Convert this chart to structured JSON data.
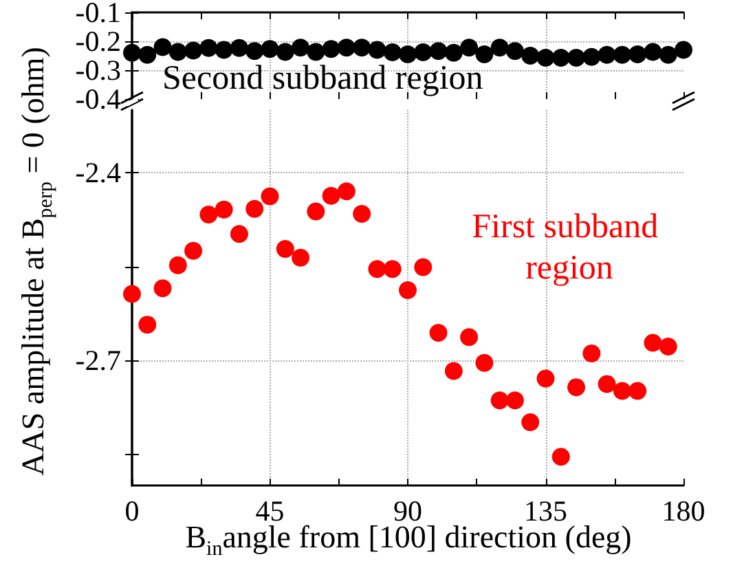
{
  "chart_data": [
    {
      "type": "scatter",
      "xlim": [
        0,
        180
      ],
      "xticks": [
        0,
        {
          "value": 22.5,
          "label": null
        },
        45,
        {
          "value": 67.5,
          "label": null
        },
        90,
        {
          "value": 112.5,
          "label": null
        },
        135,
        {
          "value": 157.5,
          "label": null
        },
        180
      ],
      "ylim": [
        -0.4,
        -0.1
      ],
      "yticks": [
        -0.4,
        -0.3,
        -0.2,
        -0.1
      ],
      "tick_labels": "y",
      "grid": true,
      "marker": "circle",
      "x": [
        0,
        5,
        10,
        15,
        20,
        25,
        30,
        35,
        40,
        45,
        50,
        55,
        60,
        65,
        70,
        75,
        80,
        85,
        90,
        95,
        100,
        105,
        110,
        115,
        120,
        125,
        130,
        135,
        140,
        145,
        150,
        155,
        160,
        165,
        170,
        175,
        180
      ],
      "series": [
        {
          "color": "#000000",
          "values": [
            -0.24,
            -0.247,
            -0.22,
            -0.237,
            -0.232,
            -0.223,
            -0.23,
            -0.223,
            -0.234,
            -0.227,
            -0.237,
            -0.222,
            -0.237,
            -0.227,
            -0.222,
            -0.222,
            -0.23,
            -0.238,
            -0.245,
            -0.238,
            -0.234,
            -0.24,
            -0.222,
            -0.245,
            -0.222,
            -0.234,
            -0.25,
            -0.257,
            -0.257,
            -0.257,
            -0.254,
            -0.247,
            -0.247,
            -0.245,
            -0.237,
            -0.247,
            -0.23
          ]
        }
      ],
      "annotations": [
        "Second subband region"
      ]
    },
    {
      "type": "scatter",
      "xlabel": "B$_{in}$angle from [100] direction (deg)",
      "ylabel": "AAS amplitude at B$_{perp}$ = 0 (ohm)",
      "xlim": [
        0,
        180
      ],
      "xticks": [
        0,
        {
          "value": 22.5,
          "label": null
        },
        45,
        {
          "value": 67.5,
          "label": null
        },
        90,
        {
          "value": 112.5,
          "label": null
        },
        135,
        {
          "value": 157.5,
          "label": null
        },
        180
      ],
      "ylim": [
        -2.9,
        -2.3
      ],
      "yticks": [
        {
          "value": -2.85,
          "label": null
        },
        -2.7,
        {
          "value": -2.55,
          "label": null
        },
        -2.4
      ],
      "grid": true,
      "marker": "circle",
      "x": [
        0,
        5,
        10,
        15,
        20,
        25,
        30,
        35,
        40,
        45,
        50,
        55,
        60,
        65,
        70,
        75,
        80,
        85,
        90,
        95,
        100,
        105,
        110,
        115,
        120,
        125,
        130,
        135,
        140,
        145,
        150,
        155,
        160,
        165,
        170,
        175
      ],
      "series": [
        {
          "color": "#ff0000",
          "values": [
            -2.594,
            -2.643,
            -2.585,
            -2.548,
            -2.525,
            -2.467,
            -2.459,
            -2.498,
            -2.458,
            -2.438,
            -2.522,
            -2.536,
            -2.462,
            -2.437,
            -2.43,
            -2.466,
            -2.554,
            -2.554,
            -2.588,
            -2.551,
            -2.656,
            -2.717,
            -2.663,
            -2.704,
            -2.764,
            -2.764,
            -2.799,
            -2.729,
            -2.854,
            -2.743,
            -2.689,
            -2.738,
            -2.749,
            -2.749,
            -2.672,
            -2.678
          ]
        }
      ],
      "annotations": [
        "First subband region"
      ]
    }
  ]
}
